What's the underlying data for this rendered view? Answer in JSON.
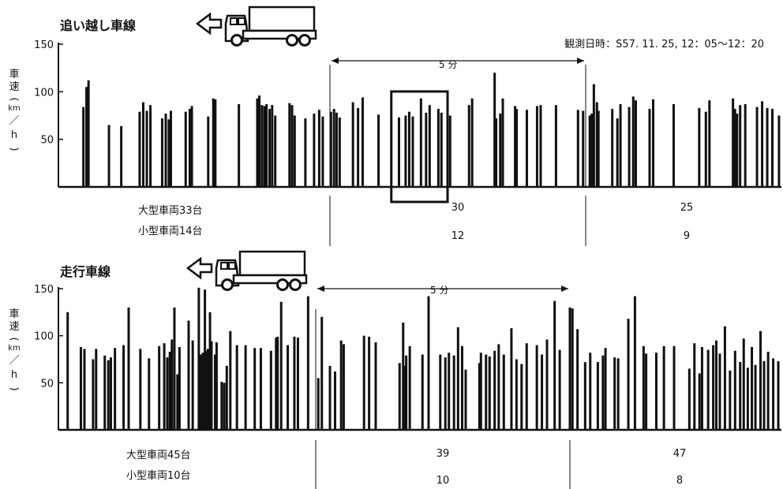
{
  "observation": "観測日時：S57. 11. 25, 12：05～12：20",
  "y_label_chars": [
    "車",
    "速",
    "(",
    "km",
    "／",
    "h",
    ")"
  ],
  "interval_label": "5 分",
  "chart_data": [
    {
      "type": "bar",
      "title": "追い越し車線",
      "ylabel": "車速(km／h)",
      "ylim": [
        0,
        150
      ],
      "yticks": [
        "150",
        "100",
        "50"
      ],
      "x_range_minutes": [
        0,
        15
      ],
      "interval_markers_minutes": [
        5,
        10
      ],
      "highlight_box_minutes": [
        6.2,
        7.3
      ],
      "counts": {
        "large_label": "大型車両33台",
        "small_label": "小型車両14台",
        "large_mid": "30",
        "small_mid": "12",
        "large_right": "25",
        "small_right": "9"
      },
      "bars": [
        [
          0.18,
          84
        ],
        [
          0.24,
          105
        ],
        [
          0.28,
          112
        ],
        [
          0.68,
          65
        ],
        [
          0.92,
          64
        ],
        [
          1.28,
          79
        ],
        [
          1.35,
          89
        ],
        [
          1.42,
          80
        ],
        [
          1.49,
          86
        ],
        [
          1.72,
          72
        ],
        [
          1.79,
          77
        ],
        [
          1.85,
          71
        ],
        [
          1.89,
          80
        ],
        [
          2.18,
          79
        ],
        [
          2.26,
          82
        ],
        [
          2.3,
          85
        ],
        [
          2.62,
          74
        ],
        [
          2.72,
          93
        ],
        [
          2.76,
          92
        ],
        [
          3.22,
          87
        ],
        [
          3.58,
          93
        ],
        [
          3.62,
          96
        ],
        [
          3.67,
          86
        ],
        [
          3.72,
          85
        ],
        [
          3.76,
          87
        ],
        [
          3.82,
          82
        ],
        [
          3.87,
          86
        ],
        [
          3.93,
          75
        ],
        [
          4.21,
          88
        ],
        [
          4.26,
          86
        ],
        [
          4.31,
          75
        ],
        [
          4.52,
          72
        ],
        [
          4.69,
          77
        ],
        [
          4.79,
          81
        ],
        [
          4.86,
          74
        ],
        [
          5.02,
          79
        ],
        [
          5.08,
          82
        ],
        [
          5.13,
          78
        ],
        [
          5.19,
          73
        ],
        [
          5.45,
          89
        ],
        [
          5.55,
          83
        ],
        [
          5.64,
          94
        ],
        [
          5.95,
          76
        ],
        [
          6.35,
          73
        ],
        [
          6.48,
          75
        ],
        [
          6.55,
          79
        ],
        [
          6.62,
          74
        ],
        [
          6.78,
          93
        ],
        [
          6.88,
          78
        ],
        [
          6.95,
          86
        ],
        [
          7.12,
          82
        ],
        [
          7.18,
          78
        ],
        [
          7.35,
          75
        ],
        [
          7.72,
          86
        ],
        [
          7.78,
          93
        ],
        [
          8.22,
          120
        ],
        [
          8.25,
          72
        ],
        [
          8.33,
          77
        ],
        [
          8.38,
          93
        ],
        [
          8.62,
          85
        ],
        [
          8.65,
          82
        ],
        [
          8.85,
          81
        ],
        [
          9.05,
          85
        ],
        [
          9.12,
          86
        ],
        [
          9.42,
          86
        ],
        [
          9.85,
          81
        ],
        [
          9.95,
          80
        ],
        [
          10.08,
          75
        ],
        [
          10.12,
          77
        ],
        [
          10.16,
          108
        ],
        [
          10.22,
          89
        ],
        [
          10.25,
          80
        ],
        [
          10.52,
          82
        ],
        [
          10.62,
          72
        ],
        [
          10.68,
          87
        ],
        [
          10.85,
          84
        ],
        [
          10.93,
          95
        ],
        [
          10.98,
          91
        ],
        [
          11.25,
          82
        ],
        [
          11.32,
          92
        ],
        [
          11.72,
          87
        ],
        [
          12.22,
          83
        ],
        [
          12.35,
          79
        ],
        [
          12.42,
          91
        ],
        [
          12.88,
          93
        ],
        [
          12.92,
          82
        ],
        [
          12.96,
          77
        ],
        [
          13.02,
          86
        ],
        [
          13.12,
          87
        ],
        [
          13.35,
          84
        ],
        [
          13.45,
          90
        ],
        [
          13.55,
          83
        ],
        [
          13.65,
          82
        ],
        [
          13.78,
          75
        ],
        [
          13.92,
          79
        ],
        [
          14.05,
          86
        ],
        [
          14.12,
          81
        ],
        [
          14.25,
          72
        ],
        [
          14.45,
          85
        ],
        [
          14.55,
          90
        ],
        [
          14.65,
          87
        ],
        [
          14.78,
          93
        ]
      ]
    },
    {
      "type": "bar",
      "title": "走行車線",
      "ylabel": "車速(km／h)",
      "ylim": [
        0,
        150
      ],
      "yticks": [
        "150",
        "100",
        "50"
      ],
      "x_range_minutes": [
        0,
        15
      ],
      "interval_markers_minutes": [
        5,
        10
      ],
      "counts": {
        "large_label": "大型車両45台",
        "small_label": "小型車両10台",
        "large_mid": "39",
        "small_mid": "10",
        "large_right": "47",
        "small_right": "8"
      },
      "bars": [
        [
          0.12,
          125
        ],
        [
          0.38,
          88
        ],
        [
          0.45,
          86
        ],
        [
          0.62,
          75
        ],
        [
          0.68,
          86
        ],
        [
          0.85,
          79
        ],
        [
          0.92,
          74
        ],
        [
          0.97,
          77
        ],
        [
          1.05,
          87
        ],
        [
          1.22,
          90
        ],
        [
          1.32,
          130
        ],
        [
          1.55,
          86
        ],
        [
          1.72,
          76
        ],
        [
          1.92,
          89
        ],
        [
          2.02,
          92
        ],
        [
          2.08,
          77
        ],
        [
          2.13,
          83
        ],
        [
          2.17,
          96
        ],
        [
          2.22,
          130
        ],
        [
          2.28,
          59
        ],
        [
          2.32,
          88
        ],
        [
          2.5,
          116
        ],
        [
          2.58,
          95
        ],
        [
          2.7,
          151
        ],
        [
          2.74,
          80
        ],
        [
          2.78,
          82
        ],
        [
          2.82,
          149
        ],
        [
          2.86,
          84
        ],
        [
          2.88,
          86
        ],
        [
          2.92,
          125
        ],
        [
          2.95,
          94
        ],
        [
          3.02,
          80
        ],
        [
          3.05,
          93
        ],
        [
          3.15,
          51
        ],
        [
          3.2,
          50
        ],
        [
          3.25,
          68
        ],
        [
          3.32,
          105
        ],
        [
          3.45,
          90
        ],
        [
          3.62,
          90
        ],
        [
          3.8,
          87
        ],
        [
          3.92,
          87
        ],
        [
          4.12,
          84
        ],
        [
          4.22,
          98
        ],
        [
          4.25,
          99
        ],
        [
          4.32,
          136
        ],
        [
          4.45,
          90
        ],
        [
          4.58,
          99
        ],
        [
          4.65,
          98
        ],
        [
          4.85,
          142
        ],
        [
          5.05,
          55
        ],
        [
          5.12,
          120
        ],
        [
          5.28,
          68
        ],
        [
          5.38,
          62
        ],
        [
          5.5,
          95
        ],
        [
          5.55,
          91
        ],
        [
          5.95,
          100
        ],
        [
          6.05,
          99
        ],
        [
          6.18,
          93
        ],
        [
          6.65,
          71
        ],
        [
          6.72,
          114
        ],
        [
          6.75,
          68
        ],
        [
          6.78,
          79
        ],
        [
          6.85,
          89
        ],
        [
          7.1,
          80
        ],
        [
          7.22,
          142
        ],
        [
          7.45,
          80
        ],
        [
          7.55,
          77
        ],
        [
          7.62,
          82
        ],
        [
          7.72,
          79
        ],
        [
          7.8,
          109
        ],
        [
          7.88,
          89
        ],
        [
          7.95,
          64
        ],
        [
          8.22,
          71
        ],
        [
          8.25,
          82
        ],
        [
          8.35,
          80
        ],
        [
          8.42,
          78
        ],
        [
          8.52,
          84
        ],
        [
          8.6,
          91
        ],
        [
          8.7,
          80
        ],
        [
          8.85,
          108
        ],
        [
          8.95,
          75
        ],
        [
          9.05,
          70
        ],
        [
          9.15,
          92
        ],
        [
          9.35,
          90
        ],
        [
          9.45,
          80
        ],
        [
          9.55,
          96
        ],
        [
          9.7,
          137
        ],
        [
          9.8,
          85
        ],
        [
          10.0,
          130
        ],
        [
          10.05,
          129
        ],
        [
          10.15,
          107
        ],
        [
          10.3,
          72
        ],
        [
          10.4,
          82
        ],
        [
          10.55,
          72
        ],
        [
          10.65,
          79
        ],
        [
          10.7,
          87
        ],
        [
          10.88,
          77
        ],
        [
          10.95,
          76
        ],
        [
          11.15,
          118
        ],
        [
          11.28,
          142
        ],
        [
          11.45,
          89
        ],
        [
          11.5,
          81
        ],
        [
          11.7,
          82
        ],
        [
          11.85,
          89
        ],
        [
          12.05,
          89
        ],
        [
          12.35,
          65
        ],
        [
          12.45,
          92
        ],
        [
          12.55,
          60
        ],
        [
          12.6,
          88
        ],
        [
          12.72,
          85
        ],
        [
          12.82,
          90
        ],
        [
          12.88,
          95
        ],
        [
          12.95,
          81
        ],
        [
          13.05,
          110
        ],
        [
          13.15,
          63
        ],
        [
          13.25,
          84
        ],
        [
          13.35,
          72
        ],
        [
          13.42,
          97
        ],
        [
          13.5,
          66
        ],
        [
          13.58,
          88
        ],
        [
          13.65,
          69
        ],
        [
          13.75,
          105
        ],
        [
          13.82,
          73
        ],
        [
          13.9,
          83
        ],
        [
          14.0,
          76
        ],
        [
          14.1,
          73
        ],
        [
          14.22,
          58
        ],
        [
          14.32,
          89
        ],
        [
          14.4,
          66
        ],
        [
          14.52,
          62
        ],
        [
          14.62,
          103
        ],
        [
          14.7,
          80
        ],
        [
          14.78,
          68
        ],
        [
          14.8,
          145
        ],
        [
          14.85,
          63
        ]
      ]
    }
  ]
}
